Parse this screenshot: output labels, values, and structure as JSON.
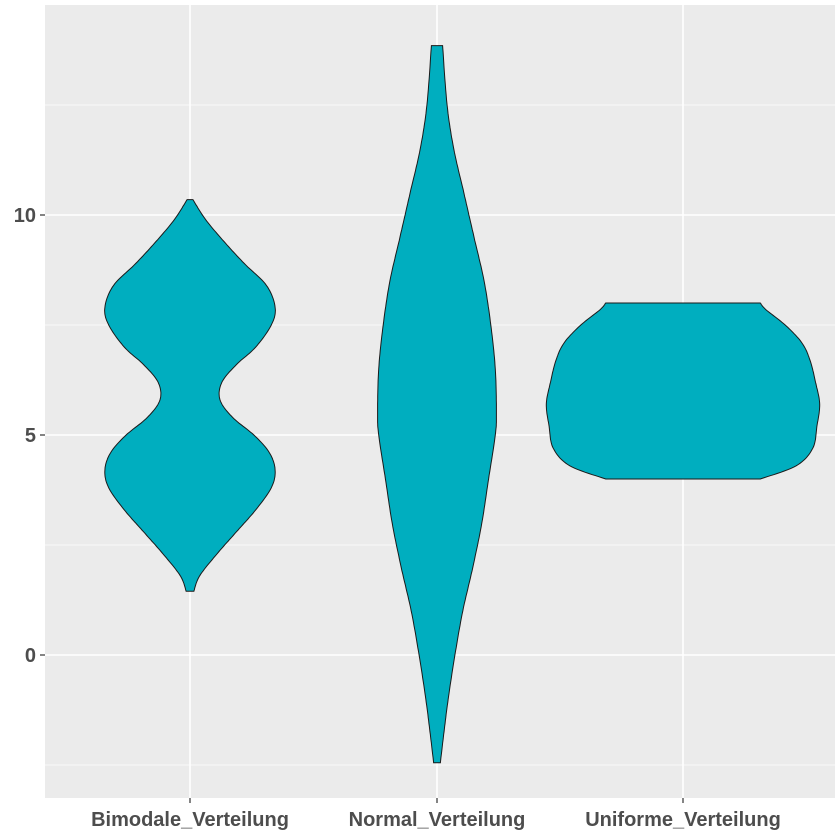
{
  "chart_data": {
    "type": "violin",
    "title": "",
    "xlabel": "",
    "ylabel": "",
    "categories": [
      "Bimodale_Verteilung",
      "Normal_Verteilung",
      "Uniforme_Verteilung"
    ],
    "y_ticks": [
      0,
      5,
      10
    ],
    "y_tick_labels": [
      "0",
      "5",
      "10"
    ],
    "ylim": [
      -2.5,
      14.8
    ],
    "grid": true,
    "legend": "none",
    "colors": {
      "fill": "#00aebf",
      "outline": "#1a1a1a",
      "panel": "#ebebeb",
      "grid": "#ffffff",
      "text": "#4d4d4d"
    },
    "series": [
      {
        "category": "Bimodale_Verteilung",
        "range": [
          1.45,
          10.35
        ],
        "density_profile": [
          [
            1.45,
            0.04
          ],
          [
            1.8,
            0.1
          ],
          [
            2.3,
            0.28
          ],
          [
            2.8,
            0.48
          ],
          [
            3.3,
            0.68
          ],
          [
            3.8,
            0.84
          ],
          [
            4.2,
            0.88
          ],
          [
            4.6,
            0.82
          ],
          [
            5.0,
            0.66
          ],
          [
            5.4,
            0.44
          ],
          [
            5.8,
            0.31
          ],
          [
            6.2,
            0.33
          ],
          [
            6.6,
            0.48
          ],
          [
            7.0,
            0.68
          ],
          [
            7.5,
            0.84
          ],
          [
            7.9,
            0.88
          ],
          [
            8.4,
            0.79
          ],
          [
            8.9,
            0.56
          ],
          [
            9.4,
            0.35
          ],
          [
            9.9,
            0.16
          ],
          [
            10.35,
            0.03
          ]
        ]
      },
      {
        "category": "Normal_Verteilung",
        "range": [
          -2.45,
          13.85
        ],
        "density_profile": [
          [
            -2.45,
            0.03
          ],
          [
            -1.8,
            0.06
          ],
          [
            -1.0,
            0.1
          ],
          [
            0.0,
            0.16
          ],
          [
            1.0,
            0.23
          ],
          [
            2.0,
            0.32
          ],
          [
            3.0,
            0.4
          ],
          [
            4.0,
            0.46
          ],
          [
            5.0,
            0.52
          ],
          [
            5.5,
            0.53
          ],
          [
            6.5,
            0.52
          ],
          [
            7.5,
            0.48
          ],
          [
            8.5,
            0.42
          ],
          [
            9.5,
            0.33
          ],
          [
            10.5,
            0.24
          ],
          [
            11.5,
            0.15
          ],
          [
            12.5,
            0.09
          ],
          [
            13.85,
            0.05
          ]
        ]
      },
      {
        "category": "Uniforme_Verteilung",
        "range": [
          4.0,
          8.0
        ],
        "density_profile": [
          [
            4.0,
            0.56
          ],
          [
            4.3,
            0.82
          ],
          [
            4.7,
            0.94
          ],
          [
            5.2,
            0.97
          ],
          [
            5.7,
            0.99
          ],
          [
            6.2,
            0.96
          ],
          [
            6.7,
            0.92
          ],
          [
            7.1,
            0.86
          ],
          [
            7.5,
            0.74
          ],
          [
            7.85,
            0.6
          ],
          [
            8.0,
            0.56
          ]
        ]
      }
    ]
  }
}
